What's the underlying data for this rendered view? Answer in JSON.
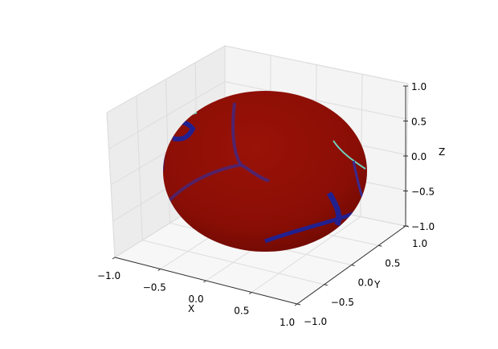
{
  "chart_data": {
    "type": "surface-3d",
    "title": "",
    "xlabel": "X",
    "ylabel": "Y",
    "zlabel": "Z",
    "xlim": [
      -1.0,
      1.0
    ],
    "ylim": [
      -1.0,
      1.0
    ],
    "zlim": [
      -1.0,
      1.0
    ],
    "xticks": [
      -1.0,
      -0.5,
      0.0,
      0.5,
      1.0
    ],
    "yticks": [
      -1.0,
      -0.5,
      0.0,
      0.5,
      1.0
    ],
    "zticks": [
      -1.0,
      -0.5,
      0.0,
      0.5,
      1.0
    ],
    "xtick_labels": [
      "−1.0",
      "−0.5",
      "0.0",
      "0.5",
      "1.0"
    ],
    "ytick_labels": [
      "−1.0",
      "−0.5",
      "0.0",
      "0.5",
      "1.0"
    ],
    "ztick_labels": [
      "−1.0",
      "−0.5",
      "0.0",
      "0.5",
      "1.0"
    ],
    "surface": "unit sphere",
    "grid": true,
    "colormap": "jet",
    "colors": {
      "dominant": "#8b0d05",
      "low": "#1a1a8c",
      "mid": "#6fd3c0",
      "pane": "#f2f2f2"
    }
  }
}
